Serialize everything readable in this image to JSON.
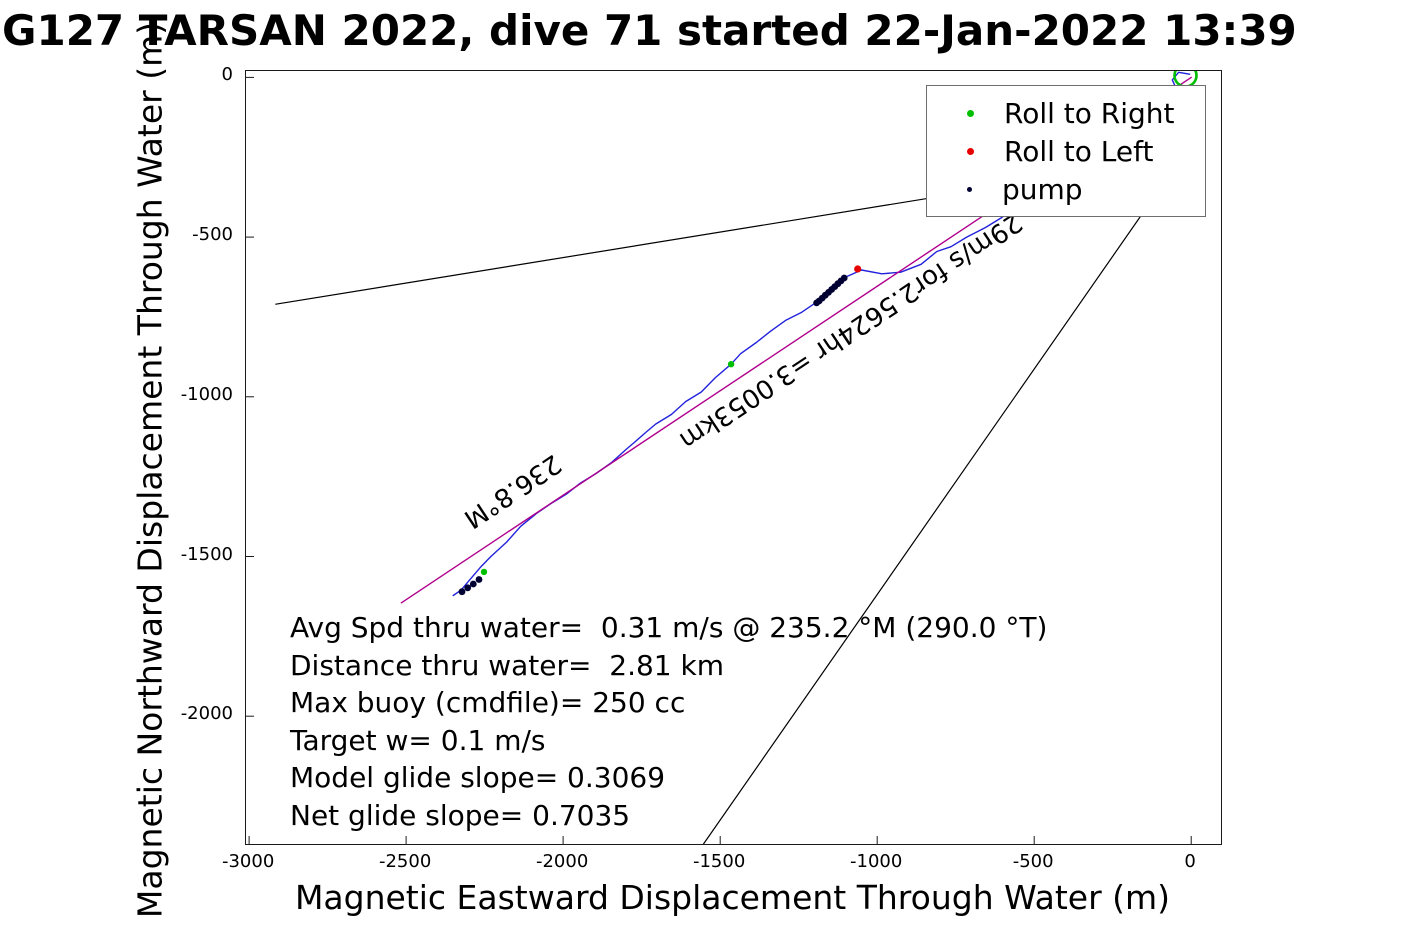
{
  "title": "G127 TARSAN 2022, dive 71 started 22-Jan-2022 13:39",
  "chart_data": {
    "type": "line",
    "title": "G127 TARSAN 2022, dive 71 started 22-Jan-2022 13:39",
    "xlabel": "Magnetic Eastward Displacement Through Water (m)",
    "ylabel": "Magnetic Northward Displacement Through Water (m)",
    "xlim": [
      -3010,
      95
    ],
    "ylim": [
      -2400,
      20
    ],
    "x_ticks": [
      -3000,
      -2500,
      -2000,
      -1500,
      -1000,
      -500,
      0
    ],
    "y_ticks": [
      0,
      -500,
      -1000,
      -1500,
      -2000
    ],
    "grid": false,
    "legend": {
      "position": "top-right",
      "items": [
        {
          "label": "Roll to Right",
          "color": "#00bf00",
          "marker_px": 7
        },
        {
          "label": "Roll to Left",
          "color": "#e60000",
          "marker_px": 7
        },
        {
          "label": "pump",
          "color": "#000033",
          "marker_px": 5
        }
      ]
    },
    "series": [
      {
        "name": "trajectory-through-water",
        "color": "#2222dd",
        "width": 1.4,
        "points": [
          [
            -5,
            10
          ],
          [
            -40,
            16
          ],
          [
            -60,
            -8
          ],
          [
            -45,
            -40
          ],
          [
            -15,
            -38
          ],
          [
            -50,
            -70
          ],
          [
            -100,
            -90
          ],
          [
            -145,
            -110
          ],
          [
            -225,
            -155
          ],
          [
            -290,
            -205
          ],
          [
            -350,
            -265
          ],
          [
            -415,
            -315
          ],
          [
            -480,
            -360
          ],
          [
            -540,
            -390
          ],
          [
            -605,
            -440
          ],
          [
            -655,
            -470
          ],
          [
            -715,
            -500
          ],
          [
            -765,
            -530
          ],
          [
            -810,
            -545
          ],
          [
            -860,
            -585
          ],
          [
            -925,
            -610
          ],
          [
            -985,
            -615
          ],
          [
            -1050,
            -603
          ],
          [
            -1100,
            -625
          ],
          [
            -1145,
            -655
          ],
          [
            -1195,
            -705
          ],
          [
            -1240,
            -735
          ],
          [
            -1290,
            -760
          ],
          [
            -1340,
            -795
          ],
          [
            -1385,
            -830
          ],
          [
            -1435,
            -865
          ],
          [
            -1465,
            -898
          ],
          [
            -1515,
            -940
          ],
          [
            -1560,
            -985
          ],
          [
            -1610,
            -1015
          ],
          [
            -1655,
            -1055
          ],
          [
            -1705,
            -1085
          ],
          [
            -1735,
            -1110
          ],
          [
            -1770,
            -1140
          ],
          [
            -1800,
            -1165
          ],
          [
            -1845,
            -1205
          ],
          [
            -1895,
            -1240
          ],
          [
            -1945,
            -1270
          ],
          [
            -1990,
            -1305
          ],
          [
            -2040,
            -1335
          ],
          [
            -2085,
            -1365
          ],
          [
            -2135,
            -1405
          ],
          [
            -2180,
            -1455
          ],
          [
            -2230,
            -1500
          ],
          [
            -2260,
            -1530
          ],
          [
            -2295,
            -1570
          ],
          [
            -2325,
            -1605
          ],
          [
            -2350,
            -1622
          ]
        ]
      },
      {
        "name": "course-line",
        "color": "#b0008c",
        "width": 1.4,
        "points": [
          [
            0,
            0
          ],
          [
            -2515,
            -1645
          ]
        ]
      },
      {
        "name": "bearing-line-upper",
        "color": "#000000",
        "width": 1.2,
        "points": [
          [
            -2915,
            -710
          ],
          [
            -30,
            -250
          ]
        ]
      },
      {
        "name": "bearing-line-lower",
        "color": "#000000",
        "width": 1.2,
        "points": [
          [
            -1553,
            -2400
          ],
          [
            -30,
            -250
          ]
        ]
      }
    ],
    "markers": [
      {
        "name": "roll-to-right",
        "color": "#00bf00",
        "size": 3.2,
        "points": [
          [
            -1465,
            -898
          ],
          [
            -2252,
            -1548
          ]
        ]
      },
      {
        "name": "roll-to-left",
        "color": "#e60000",
        "size": 3.6,
        "points": [
          [
            -1062,
            -600
          ]
        ]
      },
      {
        "name": "pump",
        "color": "#000033",
        "size": 3.4,
        "points": [
          [
            -1105,
            -628
          ],
          [
            -1115,
            -637
          ],
          [
            -1125,
            -646
          ],
          [
            -1135,
            -655
          ],
          [
            -1145,
            -664
          ],
          [
            -1155,
            -673
          ],
          [
            -1165,
            -682
          ],
          [
            -1175,
            -691
          ],
          [
            -1185,
            -700
          ],
          [
            -1193,
            -706
          ],
          [
            -2268,
            -1572
          ],
          [
            -2286,
            -1586
          ],
          [
            -2304,
            -1598
          ],
          [
            -2322,
            -1610
          ]
        ]
      }
    ],
    "start_circle": {
      "x": -18,
      "y": 6,
      "radius_px": 11,
      "color": "#00bf00",
      "stroke_width": 2.6
    },
    "rotated_annotations": [
      {
        "text": "29m/s for2.5624hr =3.0053km",
        "x": -1099,
        "y": -773,
        "rotation": 146.4,
        "font_size": 26
      },
      {
        "text": "236.8°M",
        "x": -2176,
        "y": -1274,
        "rotation": 146.4,
        "font_size": 26
      }
    ],
    "stats_text": [
      "Avg Spd thru water=  0.31 m/s @ 235.2 °M (290.0 °T)",
      "Distance thru water=  2.81 km",
      "Max buoy (cmdfile)= 250 cc",
      "Target w= 0.1 m/s",
      "Model glide slope= 0.3069",
      "Net glide slope= 0.7035"
    ]
  }
}
